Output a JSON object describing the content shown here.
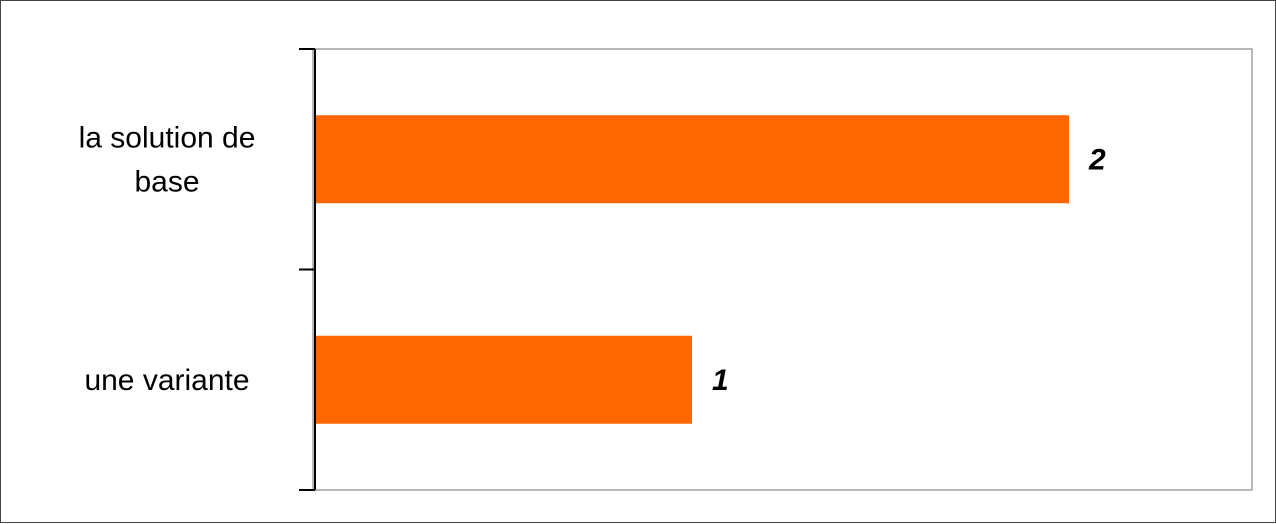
{
  "chart_data": {
    "type": "bar",
    "orientation": "horizontal",
    "categories": [
      "la solution de base",
      "une variante"
    ],
    "category_label_lines": [
      [
        "la solution de",
        "base"
      ],
      [
        "une variante"
      ]
    ],
    "values": [
      2,
      1
    ],
    "data_labels": [
      "2",
      "1"
    ],
    "title": "",
    "xlabel": "",
    "ylabel": "",
    "xlim": [
      0,
      2.5
    ],
    "grid": false,
    "legend": "none",
    "bar_color": "#FF6600",
    "plot_border_color": "#A0A0A0",
    "axis_color": "#000000"
  }
}
